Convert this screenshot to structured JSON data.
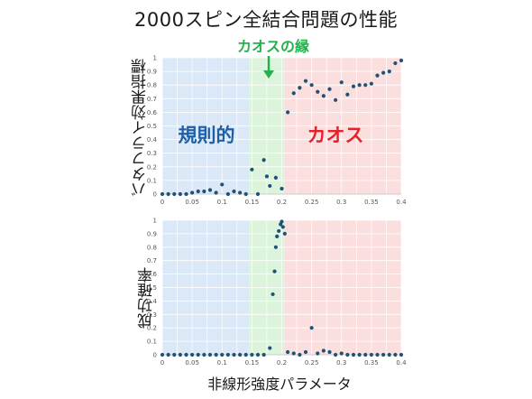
{
  "title": "2000スピン全結合問題の性能",
  "edge_of_chaos_label": "カオスの縁",
  "x_axis_label": "非線形強度パラメータ",
  "region_labels": {
    "regular": "規則的",
    "chaos": "カオス"
  },
  "colors": {
    "regular_bg": "#dbe8f7",
    "edge_bg": "#dcf3dc",
    "chaos_bg": "#fbdede",
    "marker": "#1f5277",
    "edge_text": "#22b14c",
    "regular_text": "#1f5fa8",
    "chaos_text": "#e8202a"
  },
  "chart_data": [
    {
      "type": "scatter",
      "ylabel": "バタフライ効果指標",
      "xlim": [
        0,
        0.4
      ],
      "ylim": [
        0,
        1
      ],
      "x_ticks": [
        "0",
        "0.05",
        "0.1",
        "0.15",
        "0.2",
        "0.25",
        "0.3",
        "0.35",
        "0.4"
      ],
      "y_ticks": [
        "0",
        "0.1",
        "0.2",
        "0.3",
        "0.4",
        "0.5",
        "0.6",
        "0.7",
        "0.8",
        "0.9",
        "1"
      ],
      "regions": [
        {
          "name": "regular",
          "x": [
            0,
            0.145
          ]
        },
        {
          "name": "edge",
          "x": [
            0.145,
            0.205
          ]
        },
        {
          "name": "chaos",
          "x": [
            0.205,
            0.4
          ]
        }
      ],
      "series": [
        {
          "points": [
            [
              0.0,
              0.0
            ],
            [
              0.01,
              0.0
            ],
            [
              0.02,
              0.0
            ],
            [
              0.03,
              0.0
            ],
            [
              0.04,
              0.0
            ],
            [
              0.05,
              0.01
            ],
            [
              0.06,
              0.02
            ],
            [
              0.07,
              0.02
            ],
            [
              0.08,
              0.03
            ],
            [
              0.09,
              0.01
            ],
            [
              0.1,
              0.07
            ],
            [
              0.11,
              0.0
            ],
            [
              0.12,
              0.02
            ],
            [
              0.13,
              0.01
            ],
            [
              0.14,
              0.0
            ],
            [
              0.15,
              0.18
            ],
            [
              0.16,
              0.0
            ],
            [
              0.17,
              0.25
            ],
            [
              0.175,
              0.13
            ],
            [
              0.18,
              0.06
            ],
            [
              0.19,
              0.12
            ],
            [
              0.2,
              0.04
            ],
            [
              0.21,
              0.6
            ],
            [
              0.22,
              0.74
            ],
            [
              0.23,
              0.78
            ],
            [
              0.24,
              0.83
            ],
            [
              0.25,
              0.8
            ],
            [
              0.26,
              0.75
            ],
            [
              0.27,
              0.72
            ],
            [
              0.28,
              0.77
            ],
            [
              0.29,
              0.69
            ],
            [
              0.3,
              0.82
            ],
            [
              0.31,
              0.73
            ],
            [
              0.32,
              0.79
            ],
            [
              0.33,
              0.8
            ],
            [
              0.34,
              0.8
            ],
            [
              0.35,
              0.81
            ],
            [
              0.36,
              0.87
            ],
            [
              0.37,
              0.89
            ],
            [
              0.38,
              0.9
            ],
            [
              0.39,
              0.96
            ],
            [
              0.4,
              0.98
            ]
          ]
        }
      ]
    },
    {
      "type": "scatter",
      "ylabel": "成功確率",
      "xlim": [
        0,
        0.4
      ],
      "ylim": [
        0,
        1
      ],
      "x_ticks": [
        "0",
        "0.05",
        "0.1",
        "0.15",
        "0.2",
        "0.25",
        "0.3",
        "0.35",
        "0.4"
      ],
      "y_ticks": [
        "0",
        "0.1",
        "0.2",
        "0.3",
        "0.4",
        "0.5",
        "0.6",
        "0.7",
        "0.8",
        "0.9",
        "1"
      ],
      "regions": [
        {
          "name": "regular",
          "x": [
            0,
            0.145
          ]
        },
        {
          "name": "edge",
          "x": [
            0.145,
            0.205
          ]
        },
        {
          "name": "chaos",
          "x": [
            0.205,
            0.4
          ]
        }
      ],
      "series": [
        {
          "points": [
            [
              0.0,
              0.0
            ],
            [
              0.01,
              0.0
            ],
            [
              0.02,
              0.0
            ],
            [
              0.03,
              0.0
            ],
            [
              0.04,
              0.0
            ],
            [
              0.05,
              0.0
            ],
            [
              0.06,
              0.0
            ],
            [
              0.07,
              0.0
            ],
            [
              0.08,
              0.0
            ],
            [
              0.09,
              0.0
            ],
            [
              0.1,
              0.0
            ],
            [
              0.11,
              0.0
            ],
            [
              0.12,
              0.0
            ],
            [
              0.13,
              0.0
            ],
            [
              0.14,
              0.0
            ],
            [
              0.15,
              0.0
            ],
            [
              0.16,
              0.0
            ],
            [
              0.17,
              0.0
            ],
            [
              0.18,
              0.05
            ],
            [
              0.185,
              0.45
            ],
            [
              0.188,
              0.62
            ],
            [
              0.19,
              0.8
            ],
            [
              0.192,
              0.88
            ],
            [
              0.195,
              0.92
            ],
            [
              0.198,
              0.97
            ],
            [
              0.2,
              0.99
            ],
            [
              0.202,
              0.95
            ],
            [
              0.205,
              0.9
            ],
            [
              0.21,
              0.02
            ],
            [
              0.22,
              0.01
            ],
            [
              0.23,
              0.0
            ],
            [
              0.24,
              0.02
            ],
            [
              0.25,
              0.2
            ],
            [
              0.26,
              0.01
            ],
            [
              0.27,
              0.03
            ],
            [
              0.28,
              0.02
            ],
            [
              0.29,
              0.0
            ],
            [
              0.3,
              0.01
            ],
            [
              0.31,
              0.0
            ],
            [
              0.32,
              0.0
            ],
            [
              0.33,
              0.0
            ],
            [
              0.34,
              0.0
            ],
            [
              0.35,
              0.0
            ],
            [
              0.36,
              0.0
            ],
            [
              0.37,
              0.0
            ],
            [
              0.38,
              0.0
            ],
            [
              0.39,
              0.0
            ],
            [
              0.4,
              0.0
            ]
          ]
        }
      ]
    }
  ]
}
